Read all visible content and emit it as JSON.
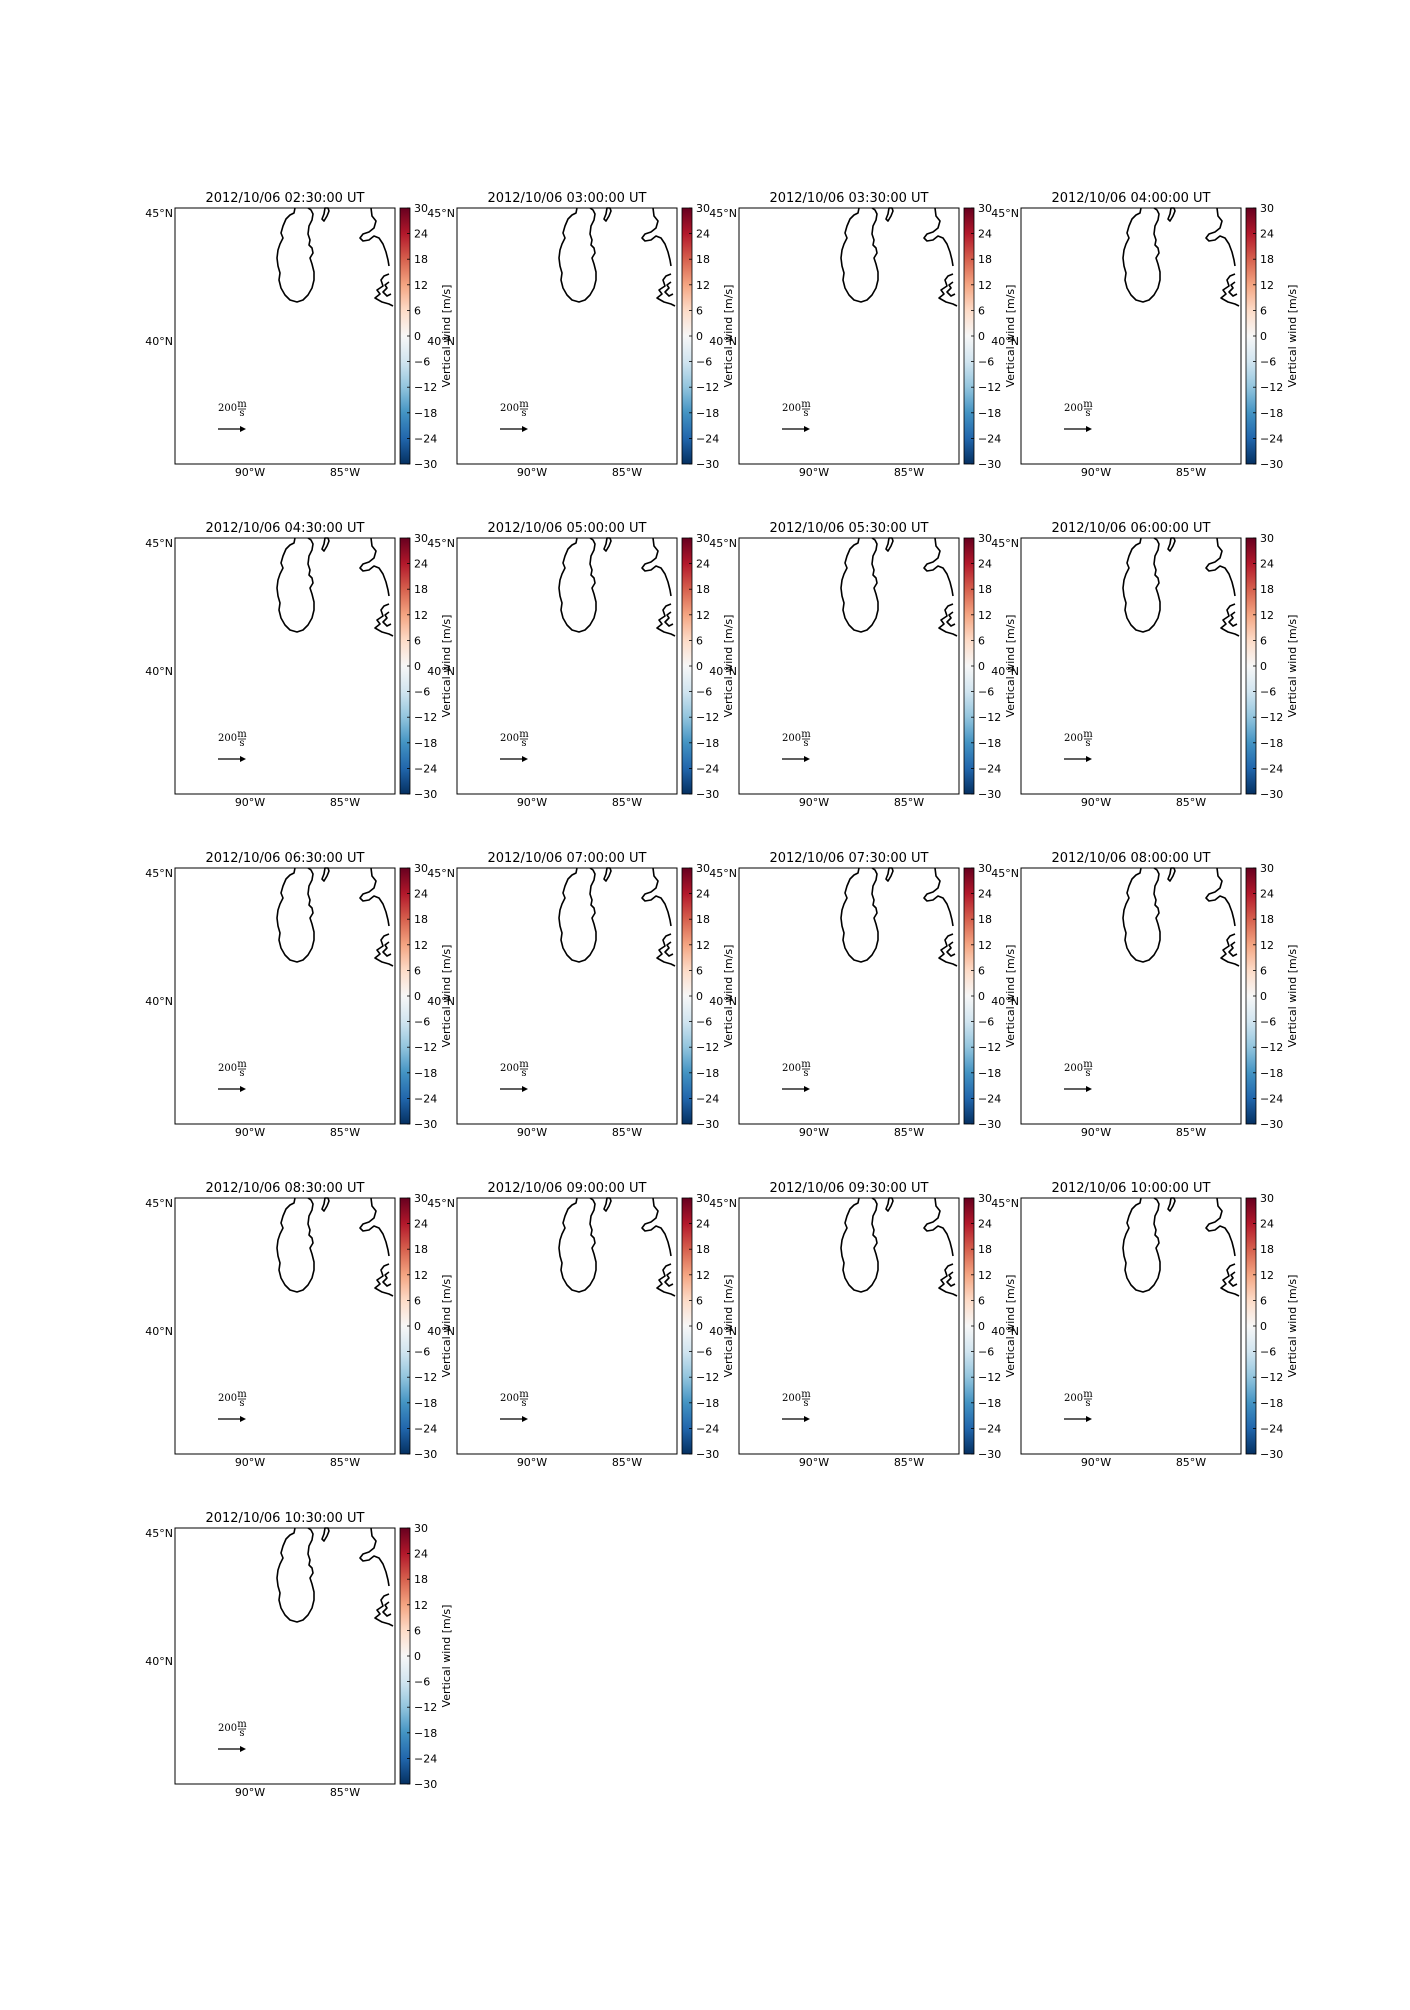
{
  "figure": {
    "colorbar": {
      "label": "Vertical wind [m/s]",
      "ticks": [
        "30",
        "24",
        "18",
        "12",
        "6",
        "0",
        "−6",
        "−12",
        "−18",
        "−24",
        "−30"
      ],
      "vmin": -30,
      "vmax": 30,
      "colormap": [
        "#67001f",
        "#b2182b",
        "#d6604d",
        "#f4a582",
        "#fddbc7",
        "#f7f7f7",
        "#d1e5f0",
        "#92c5de",
        "#4393c3",
        "#2166ac",
        "#053061"
      ]
    },
    "lat_ticks": [
      "45°N",
      "40°N"
    ],
    "lon_ticks": [
      "90°W",
      "85°W"
    ],
    "quiver_key": {
      "value": "200",
      "unit_num": "m",
      "unit_den": "s"
    },
    "panels": [
      {
        "title": "2012/10/06 02:30:00 UT"
      },
      {
        "title": "2012/10/06 03:00:00 UT"
      },
      {
        "title": "2012/10/06 03:30:00 UT"
      },
      {
        "title": "2012/10/06 04:00:00 UT"
      },
      {
        "title": "2012/10/06 04:30:00 UT"
      },
      {
        "title": "2012/10/06 05:00:00 UT"
      },
      {
        "title": "2012/10/06 05:30:00 UT"
      },
      {
        "title": "2012/10/06 06:00:00 UT"
      },
      {
        "title": "2012/10/06 06:30:00 UT"
      },
      {
        "title": "2012/10/06 07:00:00 UT"
      },
      {
        "title": "2012/10/06 07:30:00 UT"
      },
      {
        "title": "2012/10/06 08:00:00 UT"
      },
      {
        "title": "2012/10/06 08:30:00 UT"
      },
      {
        "title": "2012/10/06 09:00:00 UT"
      },
      {
        "title": "2012/10/06 09:30:00 UT"
      },
      {
        "title": "2012/10/06 10:00:00 UT"
      },
      {
        "title": "2012/10/06 10:30:00 UT"
      }
    ]
  }
}
